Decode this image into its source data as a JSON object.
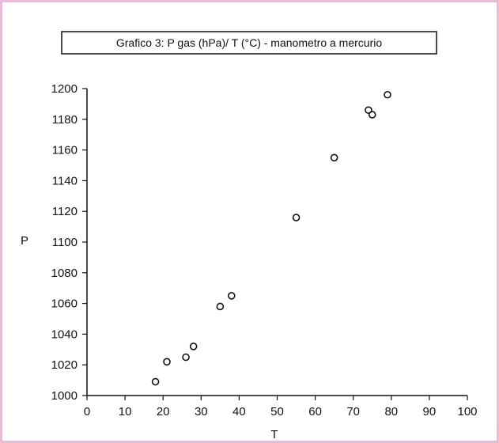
{
  "chart_data": {
    "type": "scatter",
    "title": "Grafico 3: P gas (hPa)/ T (°C) - manometro a mercurio",
    "xlabel": "T",
    "ylabel": "P",
    "xlim": [
      0,
      100
    ],
    "ylim": [
      1000,
      1200
    ],
    "xticks": [
      0,
      10,
      20,
      30,
      40,
      50,
      60,
      70,
      80,
      90,
      100
    ],
    "yticks": [
      1000,
      1020,
      1040,
      1060,
      1080,
      1100,
      1120,
      1140,
      1160,
      1180,
      1200
    ],
    "grid": false,
    "marker": "open-circle",
    "series": [
      {
        "points": [
          {
            "x": 18,
            "y": 1009
          },
          {
            "x": 21,
            "y": 1022
          },
          {
            "x": 26,
            "y": 1025
          },
          {
            "x": 28,
            "y": 1032
          },
          {
            "x": 35,
            "y": 1058
          },
          {
            "x": 38,
            "y": 1065
          },
          {
            "x": 55,
            "y": 1116
          },
          {
            "x": 65,
            "y": 1155
          },
          {
            "x": 74,
            "y": 1186
          },
          {
            "x": 75,
            "y": 1183
          },
          {
            "x": 79,
            "y": 1196
          }
        ]
      }
    ],
    "colors": {
      "frame": "#e6bdd4",
      "ink": "#111111"
    }
  }
}
